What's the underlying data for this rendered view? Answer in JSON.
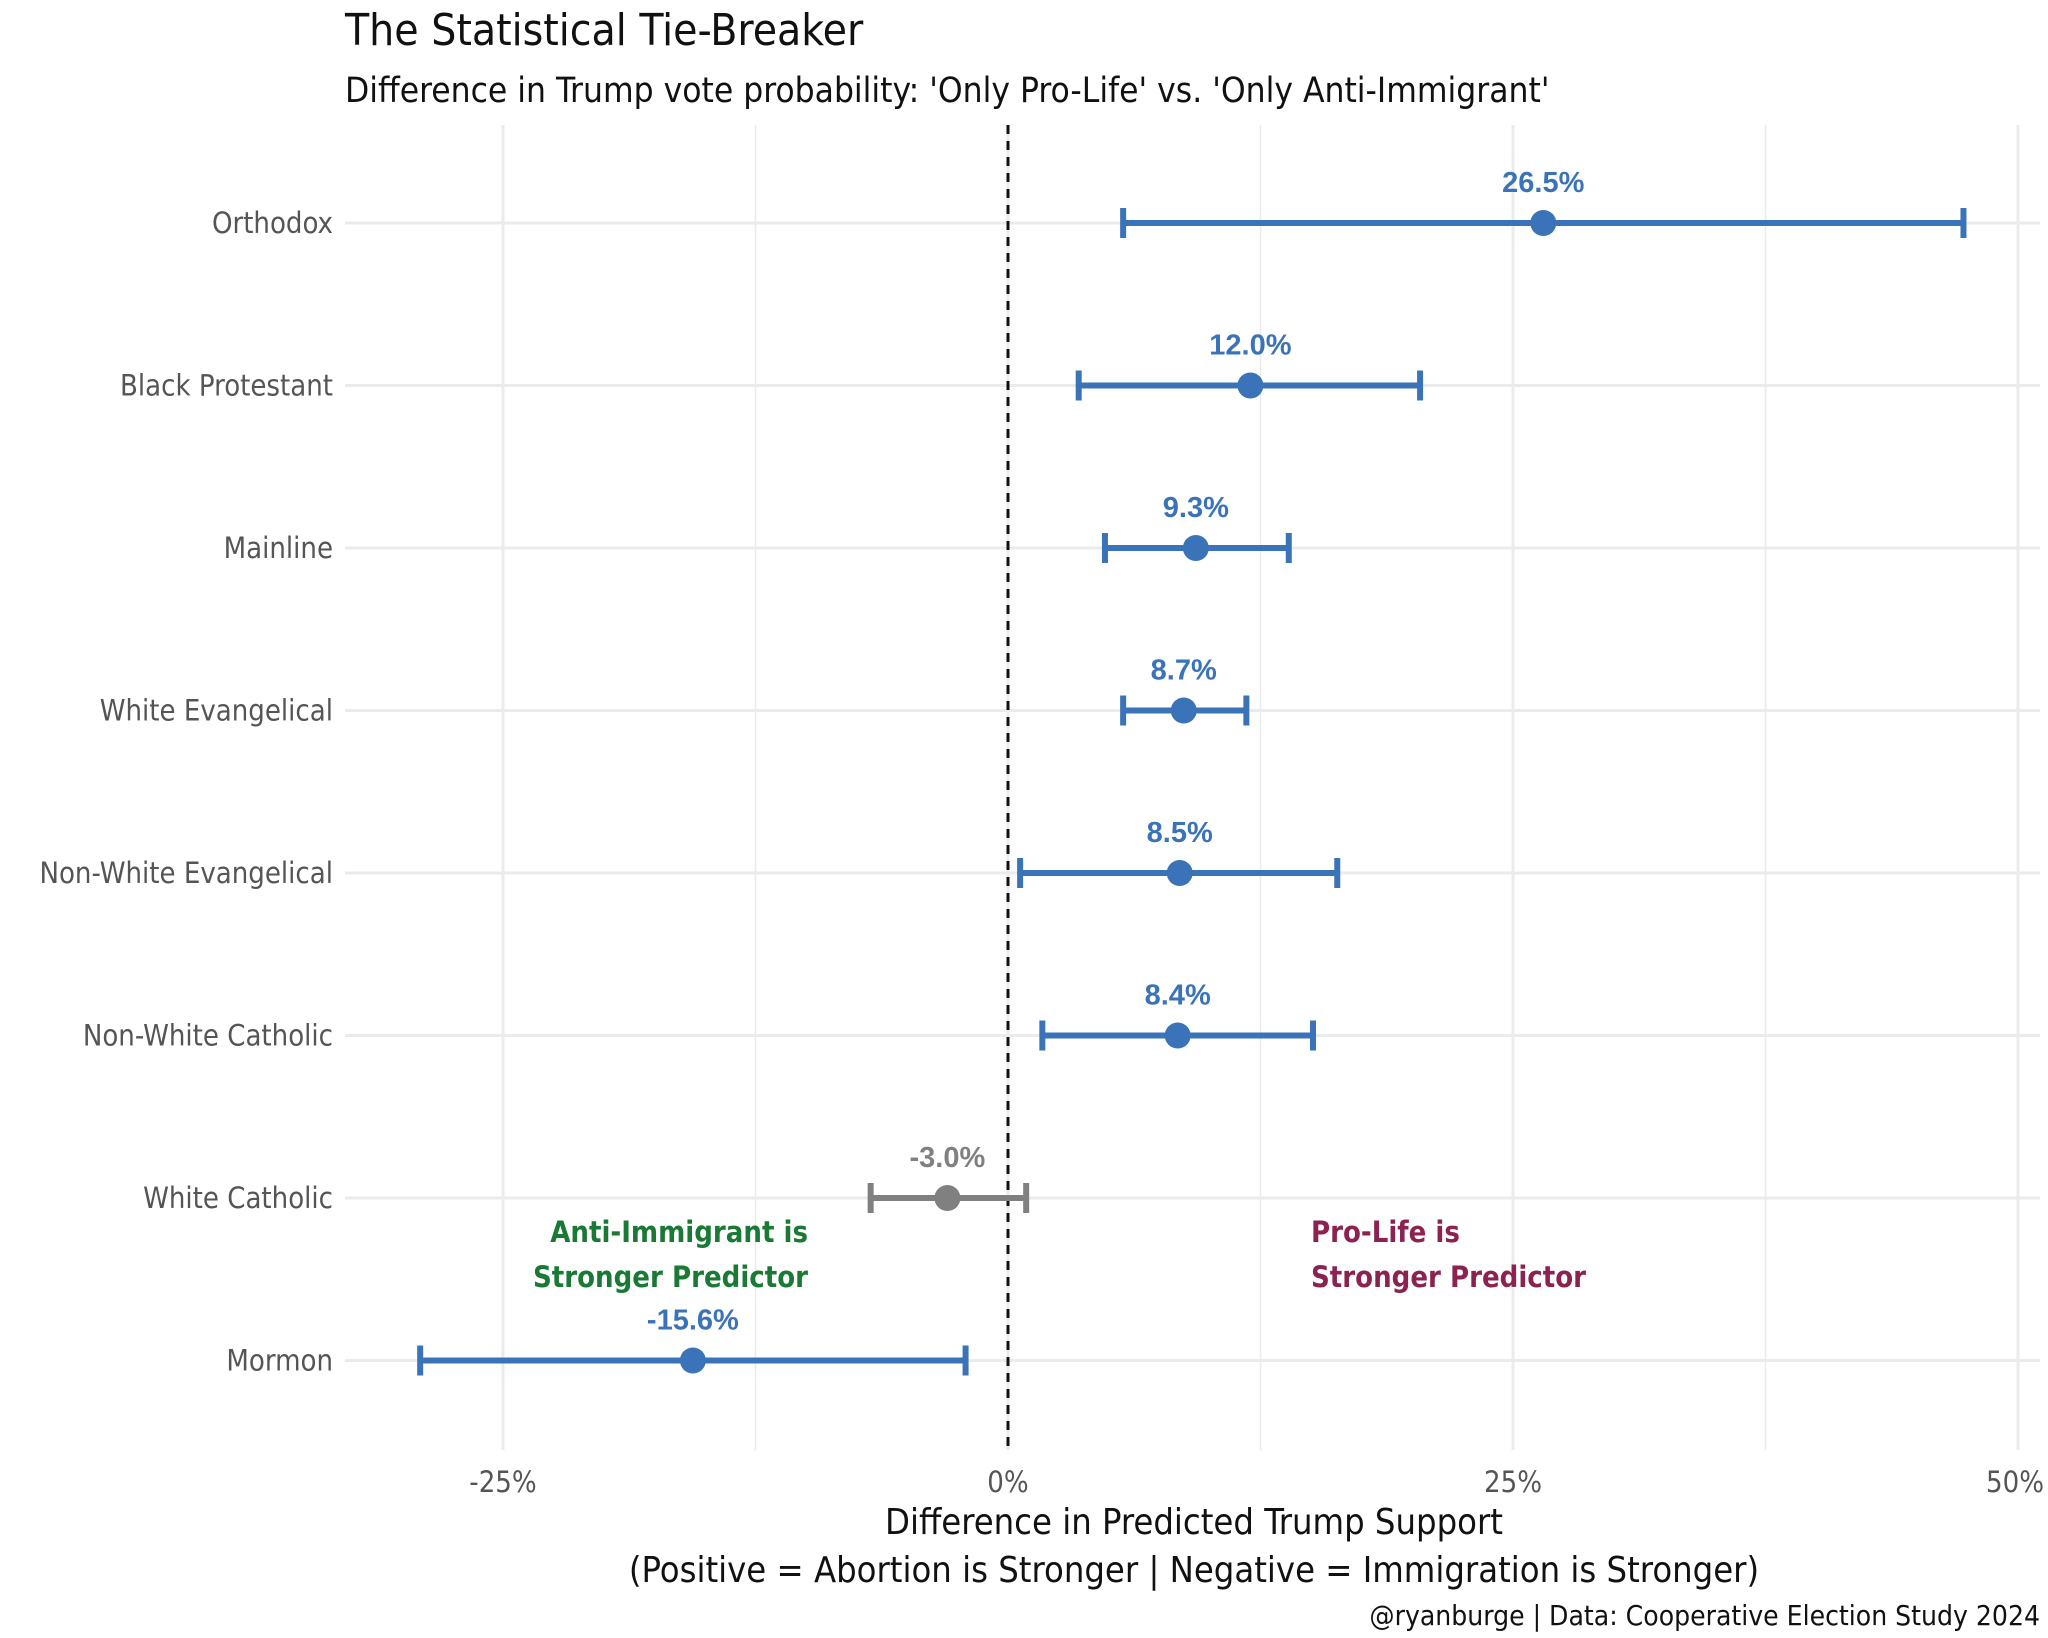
{
  "title": "The Statistical Tie-Breaker",
  "subtitle": "Difference in Trump vote probability: 'Only Pro-Life' vs. 'Only Anti-Immigrant'",
  "caption": "@ryanburge | Data: Cooperative Election Study 2024",
  "annotations": {
    "left": {
      "line1": "Anti-Immigrant is",
      "line2": "Stronger Predictor",
      "color": "#1a7a35"
    },
    "right": {
      "line1": "Pro-Life is",
      "line2": "Stronger Predictor",
      "color": "#8b2252"
    }
  },
  "colors": {
    "positive": "#3b73b9",
    "negative_nonsig": "#808080",
    "zero_line": "#111111",
    "grid": "#ebebeb"
  },
  "chart_data": {
    "type": "scatter",
    "title": "The Statistical Tie-Breaker",
    "subtitle": "Difference in Trump vote probability: 'Only Pro-Life' vs. 'Only Anti-Immigrant'",
    "xlabel_line1": "Difference in Predicted Trump Support",
    "xlabel_line2": "(Positive = Abortion is Stronger | Negative = Immigration is Stronger)",
    "xlim": [
      -0.33,
      0.51
    ],
    "xticks": [
      -0.25,
      0,
      0.25,
      0.5
    ],
    "xtick_labels": [
      "-25%",
      "0%",
      "25%",
      "50%"
    ],
    "grid": true,
    "reference_line": 0,
    "points": [
      {
        "category": "Orthodox",
        "value": 0.265,
        "low": 0.057,
        "high": 0.473,
        "label": "26.5%",
        "color": "#3b73b9"
      },
      {
        "category": "Black Protestant",
        "value": 0.12,
        "low": 0.035,
        "high": 0.204,
        "label": "12.0%",
        "color": "#3b73b9"
      },
      {
        "category": "Mainline",
        "value": 0.093,
        "low": 0.048,
        "high": 0.139,
        "label": "9.3%",
        "color": "#3b73b9"
      },
      {
        "category": "White Evangelical",
        "value": 0.087,
        "low": 0.057,
        "high": 0.118,
        "label": "8.7%",
        "color": "#3b73b9"
      },
      {
        "category": "Non-White Evangelical",
        "value": 0.085,
        "low": 0.006,
        "high": 0.163,
        "label": "8.5%",
        "color": "#3b73b9"
      },
      {
        "category": "Non-White Catholic",
        "value": 0.084,
        "low": 0.017,
        "high": 0.151,
        "label": "8.4%",
        "color": "#3b73b9"
      },
      {
        "category": "White Catholic",
        "value": -0.03,
        "low": -0.068,
        "high": 0.009,
        "label": "-3.0%",
        "color": "#808080"
      },
      {
        "category": "Mormon",
        "value": -0.156,
        "low": -0.291,
        "high": -0.021,
        "label": "-15.6%",
        "color": "#3b73b9"
      }
    ]
  }
}
